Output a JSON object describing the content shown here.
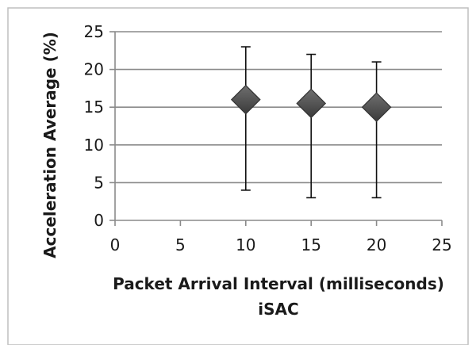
{
  "chart_data": {
    "type": "scatter",
    "title": "",
    "xlabel": "Packet Arrival Interval (milliseconds)",
    "subtitle": "iSAC",
    "ylabel": "Acceleration Average (%)",
    "xlim": [
      0,
      25
    ],
    "ylim": [
      0,
      25
    ],
    "xticks": [
      0,
      5,
      10,
      15,
      20,
      25
    ],
    "yticks": [
      0,
      5,
      10,
      15,
      20,
      25
    ],
    "grid": "horizontal",
    "legend": "none",
    "marker": "diamond",
    "series": [
      {
        "points": [
          {
            "x": 10,
            "y": 16,
            "err_low": 4,
            "err_high": 23
          },
          {
            "x": 15,
            "y": 15.5,
            "err_low": 3,
            "err_high": 22
          },
          {
            "x": 20,
            "y": 15,
            "err_low": 3,
            "err_high": 21
          }
        ]
      }
    ],
    "colors": {
      "marker": "#555555",
      "marker_edge": "#333333",
      "gridline": "#8a8a8a",
      "errorbar": "#111111",
      "frame": "#bfbfbf"
    }
  }
}
